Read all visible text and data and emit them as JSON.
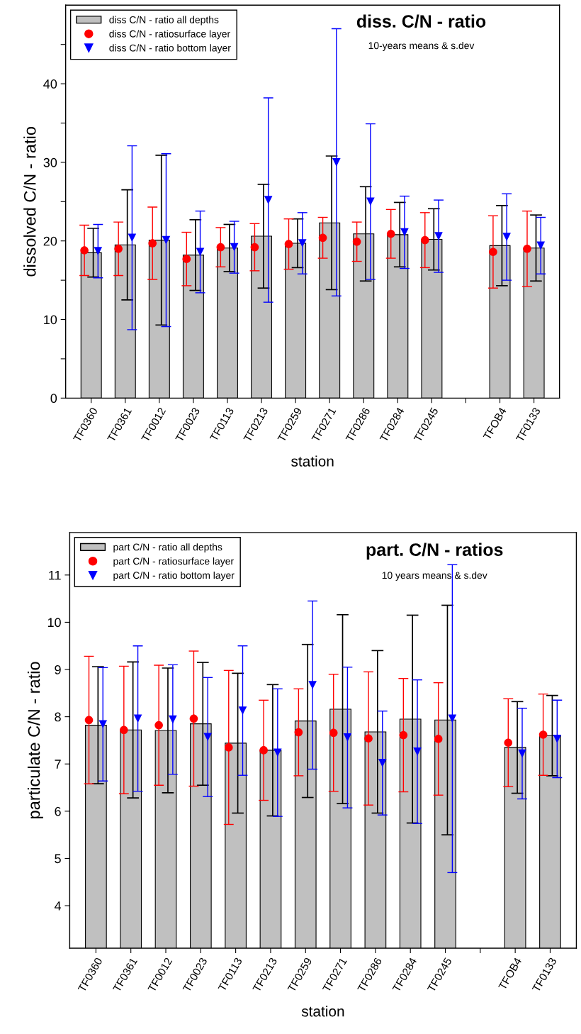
{
  "chart_data": [
    {
      "type": "bar",
      "title": "diss. C/N - ratio",
      "subtitle": "10-years means & s.dev",
      "xlabel": "station",
      "ylabel": "dissolved C/N - ratio",
      "categories": [
        "TF0360",
        "TF0361",
        "TF0012",
        "TF0023",
        "TF0113",
        "TF0213",
        "TF0259",
        "TF0271",
        "TF0286",
        "TF0284",
        "TF0245",
        null,
        "TFOB4",
        "TF0133"
      ],
      "ylim": [
        0,
        50
      ],
      "yticks": [
        0,
        {
          "value": 5,
          "label": null
        },
        10,
        {
          "value": 15,
          "label": null
        },
        20,
        {
          "value": 25,
          "label": null
        },
        30,
        {
          "value": 35,
          "label": null
        },
        40,
        {
          "value": 45,
          "label": null
        }
      ],
      "legend": "top left",
      "grid": false,
      "series": [
        {
          "name": "diss C/N - ratio all depths",
          "color": "#c0c0c0",
          "values": [
            18.5,
            19.5,
            20.1,
            18.2,
            19.1,
            20.6,
            19.7,
            22.3,
            20.9,
            20.8,
            20.2,
            null,
            19.4,
            19.1
          ],
          "errors": [
            3.1,
            7.0,
            10.8,
            4.5,
            3.0,
            6.6,
            3.1,
            8.5,
            6.0,
            4.1,
            3.9,
            null,
            5.1,
            4.2
          ]
        },
        {
          "name": "diss C/N - ratiosurface layer",
          "type": "scatter",
          "marker": "circle",
          "color": "#ff0000",
          "values": [
            18.8,
            19.0,
            19.7,
            17.7,
            19.2,
            19.2,
            19.6,
            20.4,
            19.9,
            20.9,
            20.1,
            null,
            18.6,
            19.0
          ],
          "errors": [
            3.2,
            3.4,
            4.6,
            3.4,
            2.5,
            3.0,
            3.2,
            2.6,
            2.5,
            3.1,
            3.5,
            null,
            4.6,
            4.8
          ]
        },
        {
          "name": "diss C/N - ratio bottom layer",
          "type": "scatter",
          "marker": "triangle",
          "color": "#0000ff",
          "values": [
            18.7,
            20.4,
            20.1,
            18.6,
            19.2,
            25.2,
            19.7,
            30.0,
            25.0,
            21.1,
            20.6,
            null,
            20.5,
            19.4
          ],
          "errors": [
            3.4,
            11.7,
            11.0,
            5.2,
            3.3,
            13.0,
            3.9,
            17.0,
            9.9,
            4.6,
            4.6,
            null,
            5.5,
            3.6
          ]
        }
      ]
    },
    {
      "type": "bar",
      "title": "part. C/N - ratios",
      "subtitle": "10 years means & s.dev",
      "xlabel": "station",
      "ylabel": "particulate C/N - ratio",
      "categories": [
        "TF0360",
        "TF0361",
        "TF0012",
        "TF0023",
        "TF0113",
        "TF0213",
        "TF0259",
        "TF0271",
        "TF0286",
        "TF0284",
        "TF0245",
        null,
        "TFOB4",
        "TF0133"
      ],
      "ylim": [
        3.1,
        11.9
      ],
      "yticks": [
        4,
        5,
        6,
        7,
        8,
        9,
        10,
        11
      ],
      "legend": "top left",
      "grid": false,
      "series": [
        {
          "name": "part C/N - ratio all depths",
          "color": "#c0c0c0",
          "values": [
            7.82,
            7.72,
            7.71,
            7.85,
            7.44,
            7.29,
            7.91,
            8.16,
            7.68,
            7.95,
            7.93,
            null,
            7.35,
            7.6
          ],
          "errors": [
            1.24,
            1.44,
            1.32,
            1.3,
            1.48,
            1.39,
            1.62,
            2.0,
            1.72,
            2.2,
            2.43,
            null,
            0.97,
            0.85
          ]
        },
        {
          "name": "part C/N - ratiosurface layer",
          "type": "scatter",
          "marker": "circle",
          "color": "#ff0000",
          "values": [
            7.93,
            7.72,
            7.82,
            7.96,
            7.35,
            7.29,
            7.67,
            7.66,
            7.54,
            7.61,
            7.53,
            null,
            7.45,
            7.62
          ],
          "errors": [
            1.35,
            1.35,
            1.27,
            1.43,
            1.63,
            1.06,
            0.92,
            1.24,
            1.41,
            1.2,
            1.19,
            null,
            0.93,
            0.86
          ]
        },
        {
          "name": "part C/N - ratio bottom layer",
          "type": "scatter",
          "marker": "triangle",
          "color": "#0000ff",
          "values": [
            7.84,
            7.96,
            7.94,
            7.57,
            8.13,
            7.24,
            8.67,
            7.56,
            7.02,
            7.26,
            7.96,
            null,
            7.22,
            7.53
          ],
          "errors": [
            1.2,
            1.54,
            1.16,
            1.26,
            1.37,
            1.35,
            1.78,
            1.49,
            1.1,
            1.52,
            3.26,
            null,
            0.96,
            0.82
          ]
        }
      ]
    }
  ]
}
